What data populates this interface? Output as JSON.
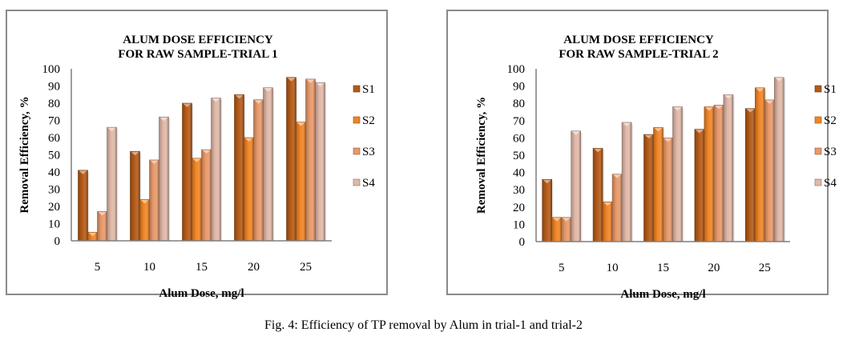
{
  "caption": "Fig. 4: Efficiency of TP removal by Alum in trial-1 and trial-2",
  "series_colors": {
    "S1": "#b45a18",
    "S2": "#f08526",
    "S3": "#e8996a",
    "S4": "#e0b8a8"
  },
  "chart_data": [
    {
      "type": "bar",
      "title": "ALUM DOSE EFFICIENCY",
      "subtitle": "FOR RAW SAMPLE-TRIAL 1",
      "xlabel": "Alum Dose, mg/l",
      "ylabel": "Removal Efficiency, %",
      "ylim": [
        0,
        100
      ],
      "yticks": [
        "0",
        "10",
        "20",
        "30",
        "40",
        "50",
        "60",
        "70",
        "80",
        "90",
        "100"
      ],
      "categories": [
        "5",
        "10",
        "15",
        "20",
        "25"
      ],
      "legend_position": "right",
      "grid": false,
      "series": [
        {
          "name": "S1",
          "values": [
            41,
            52,
            80,
            85,
            95
          ]
        },
        {
          "name": "S2",
          "values": [
            5,
            24,
            48,
            60,
            69
          ]
        },
        {
          "name": "S3",
          "values": [
            17,
            47,
            53,
            82,
            94
          ]
        },
        {
          "name": "S4",
          "values": [
            66,
            72,
            83,
            89,
            92
          ]
        }
      ]
    },
    {
      "type": "bar",
      "title": "ALUM DOSE EFFICIENCY",
      "subtitle": "FOR RAW SAMPLE-TRIAL 2",
      "xlabel": "Alum Dose, mg/l",
      "ylabel": "Removal Efficiency, %",
      "ylim": [
        0,
        100
      ],
      "yticks": [
        "0",
        "10",
        "20",
        "30",
        "40",
        "50",
        "60",
        "70",
        "80",
        "90",
        "100"
      ],
      "categories": [
        "5",
        "10",
        "15",
        "20",
        "25"
      ],
      "legend_position": "right",
      "grid": false,
      "series": [
        {
          "name": "S1",
          "values": [
            36,
            54,
            62,
            65,
            77
          ]
        },
        {
          "name": "S2",
          "values": [
            14,
            23,
            66,
            78,
            89
          ]
        },
        {
          "name": "S3",
          "values": [
            14,
            39,
            60,
            79,
            82
          ]
        },
        {
          "name": "S4",
          "values": [
            64,
            69,
            78,
            85,
            95
          ]
        }
      ]
    }
  ]
}
